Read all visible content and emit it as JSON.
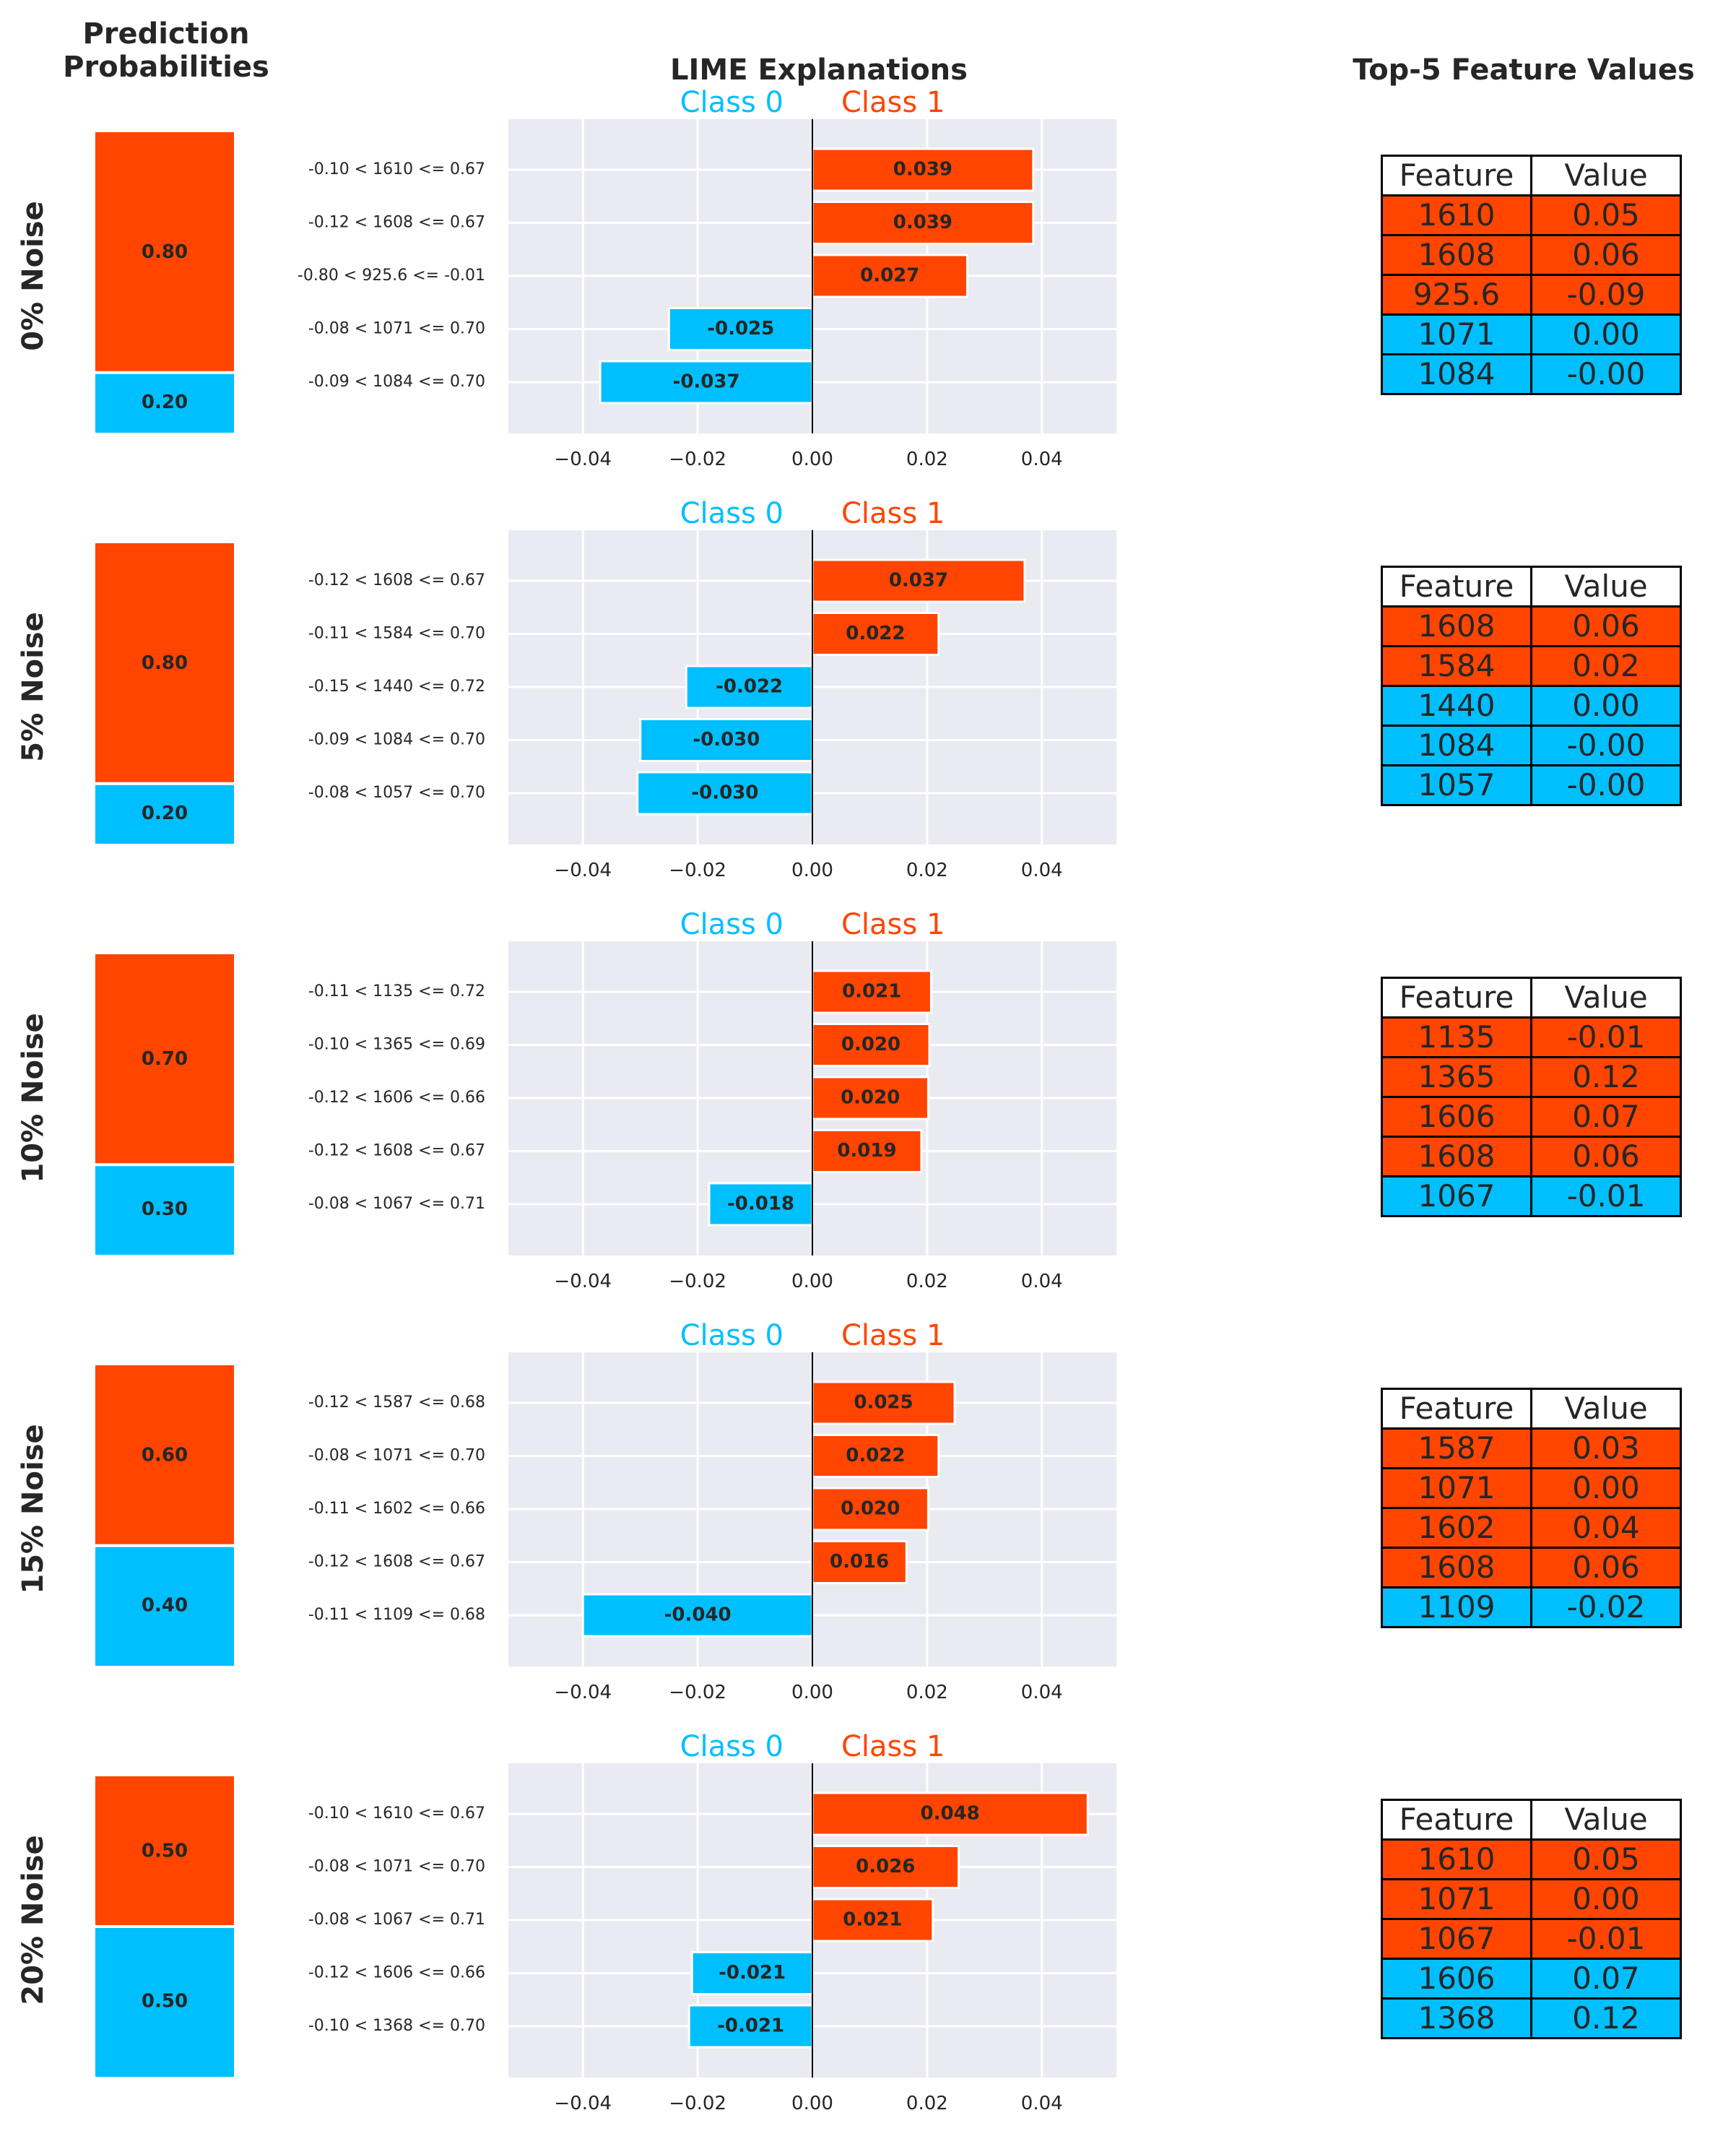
{
  "titles": {
    "probabilities": "Prediction\nProbabilities",
    "lime": "LIME Explanations",
    "table": "Top-5 Feature Values"
  },
  "colors": {
    "class0": "#00BFFF",
    "class1": "#FF4500",
    "axes_bg": "#EAEAF2"
  },
  "class_labels": [
    "Class 0",
    "Class 1"
  ],
  "table_header": [
    "Feature",
    "Value"
  ],
  "chart_data": [
    {
      "type": "bar",
      "row_label": "0% Noise",
      "probabilities": {
        "class1": 0.8,
        "class0": 0.2,
        "class1_label": "0.80",
        "class0_label": "0.20"
      },
      "xlim": [
        -0.053,
        0.053
      ],
      "xticks": [
        -0.04,
        -0.02,
        0.0,
        0.02,
        0.04
      ],
      "xtick_labels": [
        "−0.04",
        "−0.02",
        "0.00",
        "0.02",
        "0.04"
      ],
      "bars": [
        {
          "label": "-0.10 < 1610 <= 0.67",
          "value": 0.0385,
          "text": "0.039",
          "class": 1
        },
        {
          "label": "-0.12 < 1608 <= 0.67",
          "value": 0.0385,
          "text": "0.039",
          "class": 1
        },
        {
          "label": "-0.80 < 925.6 <= -0.01",
          "value": 0.027,
          "text": "0.027",
          "class": 1
        },
        {
          "label": "-0.08 < 1071 <= 0.70",
          "value": -0.025,
          "text": "-0.025",
          "class": 0
        },
        {
          "label": "-0.09 < 1084 <= 0.70",
          "value": -0.037,
          "text": "-0.037",
          "class": 0
        }
      ],
      "table": [
        {
          "feature": "1610",
          "value": "0.05",
          "class": 1
        },
        {
          "feature": "1608",
          "value": "0.06",
          "class": 1
        },
        {
          "feature": "925.6",
          "value": "-0.09",
          "class": 1
        },
        {
          "feature": "1071",
          "value": "0.00",
          "class": 0
        },
        {
          "feature": "1084",
          "value": "-0.00",
          "class": 0
        }
      ]
    },
    {
      "type": "bar",
      "row_label": "5% Noise",
      "probabilities": {
        "class1": 0.8,
        "class0": 0.2,
        "class1_label": "0.80",
        "class0_label": "0.20"
      },
      "xlim": [
        -0.053,
        0.053
      ],
      "xticks": [
        -0.04,
        -0.02,
        0.0,
        0.02,
        0.04
      ],
      "xtick_labels": [
        "−0.04",
        "−0.02",
        "0.00",
        "0.02",
        "0.04"
      ],
      "bars": [
        {
          "label": "-0.12 < 1608 <= 0.67",
          "value": 0.037,
          "text": "0.037",
          "class": 1
        },
        {
          "label": "-0.11 < 1584 <= 0.70",
          "value": 0.022,
          "text": "0.022",
          "class": 1
        },
        {
          "label": "-0.15 < 1440 <= 0.72",
          "value": -0.022,
          "text": "-0.022",
          "class": 0
        },
        {
          "label": "-0.09 < 1084 <= 0.70",
          "value": -0.03,
          "text": "-0.030",
          "class": 0
        },
        {
          "label": "-0.08 < 1057 <= 0.70",
          "value": -0.0305,
          "text": "-0.030",
          "class": 0
        }
      ],
      "table": [
        {
          "feature": "1608",
          "value": "0.06",
          "class": 1
        },
        {
          "feature": "1584",
          "value": "0.02",
          "class": 1
        },
        {
          "feature": "1440",
          "value": "0.00",
          "class": 0
        },
        {
          "feature": "1084",
          "value": "-0.00",
          "class": 0
        },
        {
          "feature": "1057",
          "value": "-0.00",
          "class": 0
        }
      ]
    },
    {
      "type": "bar",
      "row_label": "10% Noise",
      "probabilities": {
        "class1": 0.7,
        "class0": 0.3,
        "class1_label": "0.70",
        "class0_label": "0.30"
      },
      "xlim": [
        -0.053,
        0.053
      ],
      "xticks": [
        -0.04,
        -0.02,
        0.0,
        0.02,
        0.04
      ],
      "xtick_labels": [
        "−0.04",
        "−0.02",
        "0.00",
        "0.02",
        "0.04"
      ],
      "bars": [
        {
          "label": "-0.11 < 1135 <= 0.72",
          "value": 0.0207,
          "text": "0.021",
          "class": 1
        },
        {
          "label": "-0.10 < 1365 <= 0.69",
          "value": 0.0204,
          "text": "0.020",
          "class": 1
        },
        {
          "label": "-0.12 < 1606 <= 0.66",
          "value": 0.0202,
          "text": "0.020",
          "class": 1
        },
        {
          "label": "-0.12 < 1608 <= 0.67",
          "value": 0.019,
          "text": "0.019",
          "class": 1
        },
        {
          "label": "-0.08 < 1067 <= 0.71",
          "value": -0.018,
          "text": "-0.018",
          "class": 0
        }
      ],
      "table": [
        {
          "feature": "1135",
          "value": "-0.01",
          "class": 1
        },
        {
          "feature": "1365",
          "value": "0.12",
          "class": 1
        },
        {
          "feature": "1606",
          "value": "0.07",
          "class": 1
        },
        {
          "feature": "1608",
          "value": "0.06",
          "class": 1
        },
        {
          "feature": "1067",
          "value": "-0.01",
          "class": 0
        }
      ]
    },
    {
      "type": "bar",
      "row_label": "15% Noise",
      "probabilities": {
        "class1": 0.6,
        "class0": 0.4,
        "class1_label": "0.60",
        "class0_label": "0.40"
      },
      "xlim": [
        -0.053,
        0.053
      ],
      "xticks": [
        -0.04,
        -0.02,
        0.0,
        0.02,
        0.04
      ],
      "xtick_labels": [
        "−0.04",
        "−0.02",
        "0.00",
        "0.02",
        "0.04"
      ],
      "bars": [
        {
          "label": "-0.12 < 1587 <= 0.68",
          "value": 0.0248,
          "text": "0.025",
          "class": 1
        },
        {
          "label": "-0.08 < 1071 <= 0.70",
          "value": 0.022,
          "text": "0.022",
          "class": 1
        },
        {
          "label": "-0.11 < 1602 <= 0.66",
          "value": 0.0202,
          "text": "0.020",
          "class": 1
        },
        {
          "label": "-0.12 < 1608 <= 0.67",
          "value": 0.0164,
          "text": "0.016",
          "class": 1
        },
        {
          "label": "-0.11 < 1109 <= 0.68",
          "value": -0.04,
          "text": "-0.040",
          "class": 0
        }
      ],
      "table": [
        {
          "feature": "1587",
          "value": "0.03",
          "class": 1
        },
        {
          "feature": "1071",
          "value": "0.00",
          "class": 1
        },
        {
          "feature": "1602",
          "value": "0.04",
          "class": 1
        },
        {
          "feature": "1608",
          "value": "0.06",
          "class": 1
        },
        {
          "feature": "1109",
          "value": "-0.02",
          "class": 0
        }
      ]
    },
    {
      "type": "bar",
      "row_label": "20% Noise",
      "probabilities": {
        "class1": 0.5,
        "class0": 0.5,
        "class1_label": "0.50",
        "class0_label": "0.50"
      },
      "xlim": [
        -0.053,
        0.053
      ],
      "xticks": [
        -0.04,
        -0.02,
        0.0,
        0.02,
        0.04
      ],
      "xtick_labels": [
        "−0.04",
        "−0.02",
        "0.00",
        "0.02",
        "0.04"
      ],
      "bars": [
        {
          "label": "-0.10 < 1610 <= 0.67",
          "value": 0.048,
          "text": "0.048",
          "class": 1
        },
        {
          "label": "-0.08 < 1071 <= 0.70",
          "value": 0.0255,
          "text": "0.026",
          "class": 1
        },
        {
          "label": "-0.08 < 1067 <= 0.71",
          "value": 0.021,
          "text": "0.021",
          "class": 1
        },
        {
          "label": "-0.12 < 1606 <= 0.66",
          "value": -0.021,
          "text": "-0.021",
          "class": 0
        },
        {
          "label": "-0.10 < 1368 <= 0.70",
          "value": -0.0215,
          "text": "-0.021",
          "class": 0
        }
      ],
      "table": [
        {
          "feature": "1610",
          "value": "0.05",
          "class": 1
        },
        {
          "feature": "1071",
          "value": "0.00",
          "class": 1
        },
        {
          "feature": "1067",
          "value": "-0.01",
          "class": 1
        },
        {
          "feature": "1606",
          "value": "0.07",
          "class": 0
        },
        {
          "feature": "1368",
          "value": "0.12",
          "class": 0
        }
      ]
    }
  ]
}
